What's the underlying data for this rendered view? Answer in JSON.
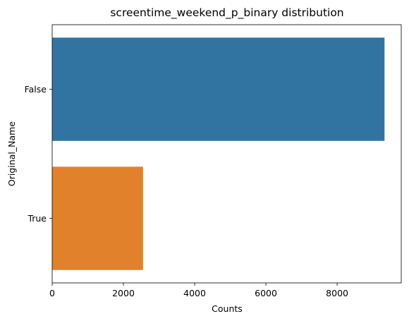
{
  "chart_data": {
    "type": "bar",
    "orientation": "horizontal",
    "title": "screentime_weekend_p_binary distribution",
    "xlabel": "Counts",
    "ylabel": "Original_Name",
    "categories": [
      "False",
      "True"
    ],
    "values": [
      9330,
      2550
    ],
    "colors": [
      "#3274a1",
      "#e1812c"
    ],
    "xlim": [
      0,
      9800
    ],
    "xticks": [
      0,
      2000,
      4000,
      6000,
      8000
    ],
    "grid": false,
    "legend": "none"
  }
}
